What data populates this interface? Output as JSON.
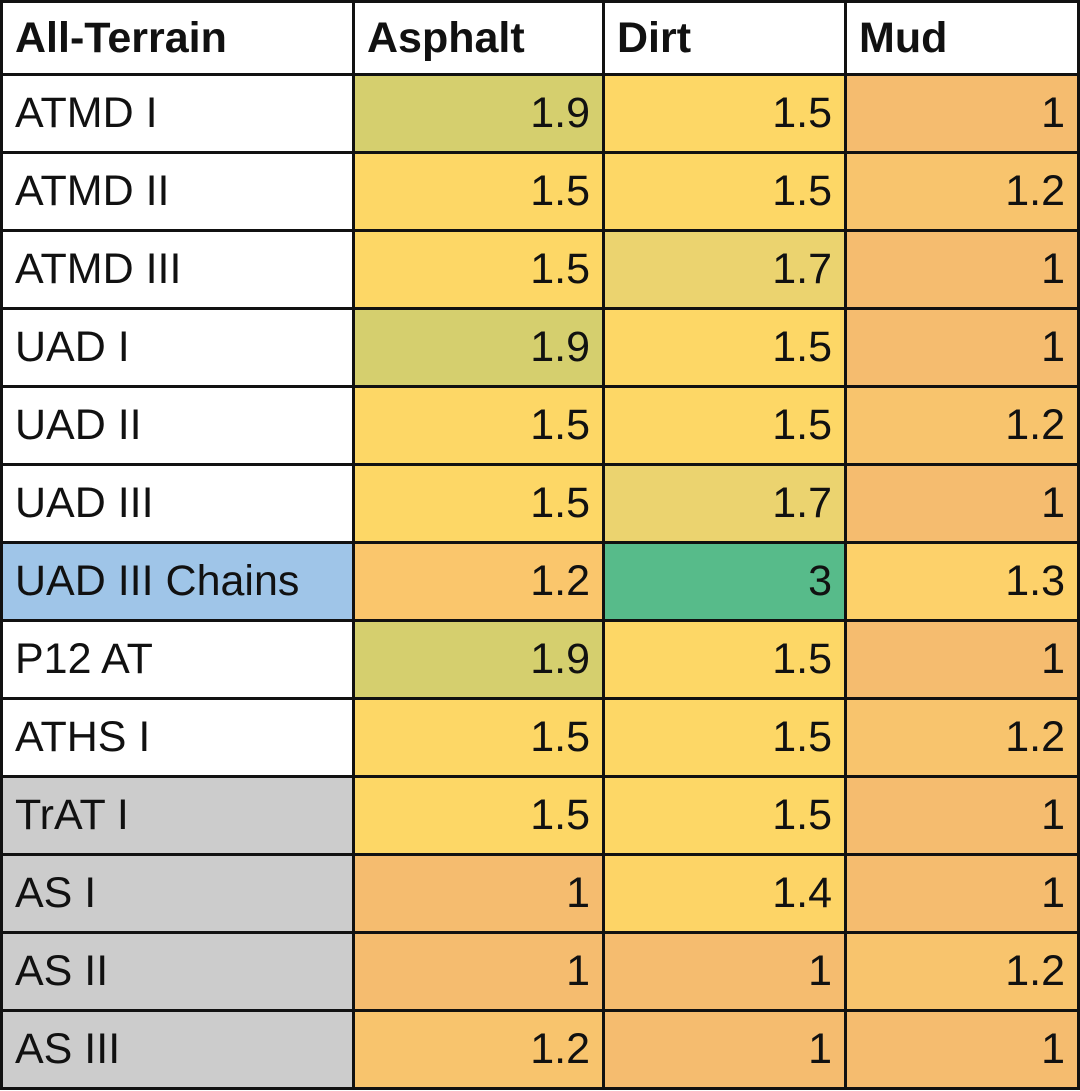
{
  "table": {
    "header": [
      "All-Terrain",
      "Asphalt",
      "Dirt",
      "Mud"
    ],
    "header_color": "#ffffff",
    "rows": [
      {
        "label": "ATMD I",
        "label_color": "#ffffff",
        "values": [
          "1.9",
          "1.5",
          "1"
        ],
        "colors": [
          "#d5cf6e",
          "#fdd766",
          "#f5bc6f"
        ]
      },
      {
        "label": "ATMD II",
        "label_color": "#ffffff",
        "values": [
          "1.5",
          "1.5",
          "1.2"
        ],
        "colors": [
          "#fdd766",
          "#fdd766",
          "#f8c46d"
        ]
      },
      {
        "label": "ATMD III",
        "label_color": "#ffffff",
        "values": [
          "1.5",
          "1.7",
          "1"
        ],
        "colors": [
          "#fdd766",
          "#ebd36f",
          "#f5bc6f"
        ]
      },
      {
        "label": "UAD I",
        "label_color": "#ffffff",
        "values": [
          "1.9",
          "1.5",
          "1"
        ],
        "colors": [
          "#d5cf6e",
          "#fdd766",
          "#f5bc6f"
        ]
      },
      {
        "label": "UAD II",
        "label_color": "#ffffff",
        "values": [
          "1.5",
          "1.5",
          "1.2"
        ],
        "colors": [
          "#fdd766",
          "#fdd766",
          "#f8c46d"
        ]
      },
      {
        "label": "UAD III",
        "label_color": "#ffffff",
        "values": [
          "1.5",
          "1.7",
          "1"
        ],
        "colors": [
          "#fdd766",
          "#ebd36f",
          "#f5bc6f"
        ]
      },
      {
        "label": "UAD III Chains",
        "label_color": "#9fc5e8",
        "values": [
          "1.2",
          "3",
          "1.3"
        ],
        "colors": [
          "#fac66c",
          "#57bb8a",
          "#fdd16a"
        ]
      },
      {
        "label": "P12 AT",
        "label_color": "#ffffff",
        "values": [
          "1.9",
          "1.5",
          "1"
        ],
        "colors": [
          "#d5cf6e",
          "#fdd766",
          "#f5bc6f"
        ]
      },
      {
        "label": "ATHS I",
        "label_color": "#ffffff",
        "values": [
          "1.5",
          "1.5",
          "1.2"
        ],
        "colors": [
          "#fdd766",
          "#fdd766",
          "#f8c46d"
        ]
      },
      {
        "label": "TrAT I",
        "label_color": "#cccccc",
        "values": [
          "1.5",
          "1.5",
          "1"
        ],
        "colors": [
          "#fdd766",
          "#fdd766",
          "#f5bc6f"
        ]
      },
      {
        "label": "AS I",
        "label_color": "#cccccc",
        "values": [
          "1",
          "1.4",
          "1"
        ],
        "colors": [
          "#f5bc6f",
          "#fdd466",
          "#f5bc6f"
        ]
      },
      {
        "label": "AS II",
        "label_color": "#cccccc",
        "values": [
          "1",
          "1",
          "1.2"
        ],
        "colors": [
          "#f5bc6f",
          "#f5bc6f",
          "#f8c46d"
        ]
      },
      {
        "label": "AS III",
        "label_color": "#cccccc",
        "values": [
          "1.2",
          "1",
          "1"
        ],
        "colors": [
          "#f8c46d",
          "#f5bc6f",
          "#f5bc6f"
        ]
      }
    ]
  }
}
